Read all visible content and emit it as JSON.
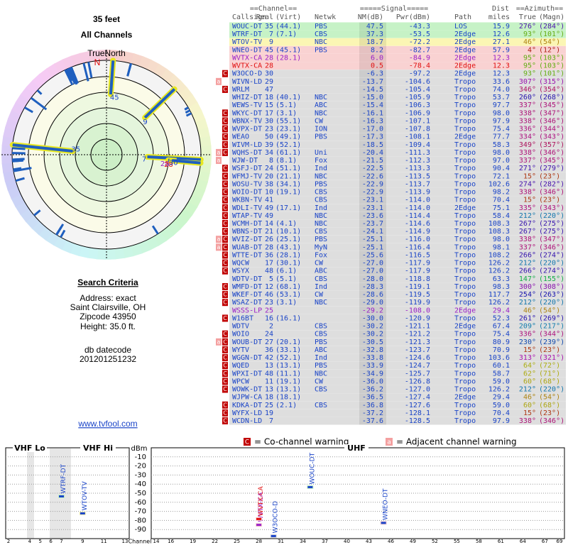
{
  "left": {
    "height": "35 feet",
    "channels": "All Channels",
    "true_north": "TrueNorth",
    "north": "N"
  },
  "search": {
    "title": "Search Criteria",
    "lines": [
      "Address: exact",
      "Saint Clairsville, OH",
      "Zipcode 43950",
      "Height: 35.0 ft."
    ],
    "datecode_label": "db datecode",
    "datecode": "201201251232",
    "link": "www.tvfool.com"
  },
  "table": {
    "groups": [
      "==Channel==",
      "=====Signal=====",
      "Dist",
      "==Azimuth=="
    ],
    "headers": [
      "Callsign",
      "Real",
      "(Virt)",
      "Netwk",
      "NM(dB)",
      "Pwr(dBm)",
      "Path",
      "miles",
      "True",
      "(Magn)"
    ],
    "color": "#1a44c8",
    "bg": "#dedede",
    "rows": [
      {
        "callsign": "WOUC-DT",
        "real": 35,
        "virt": "(44.1)",
        "netwk": "PBS",
        "nm": "47.5",
        "pwr": "-43.3",
        "path": "LOS",
        "dist": "15.9",
        "true": "276°",
        "magn": "(284°)",
        "bg": "#c6f2c6",
        "plotted": true
      },
      {
        "callsign": "WTRF-DT",
        "real": 7,
        "virt": "(7.1)",
        "netwk": "CBS",
        "nm": "37.3",
        "pwr": "-53.5",
        "path": "2Edge",
        "dist": "12.6",
        "true": "93°",
        "magn": "(101°)",
        "bg": "#c6f2c6",
        "plotted": true
      },
      {
        "callsign": "WTOV-TV",
        "real": 9,
        "netwk": "NBC",
        "nm": "18.7",
        "pwr": "-72.2",
        "path": "2Edge",
        "dist": "27.1",
        "true": "46°",
        "magn": "(54°)",
        "bg": "#fbf6b4",
        "plotted": true
      },
      {
        "callsign": "WNEO-DT",
        "real": 45,
        "virt": "(45.1)",
        "netwk": "PBS",
        "nm": "8.2",
        "pwr": "-82.7",
        "path": "2Edge",
        "dist": "57.9",
        "true": "4°",
        "magn": "(12°)",
        "bg": "#f9d2d2",
        "plotted": true
      },
      {
        "callsign": "WVTX-CA",
        "real": 28,
        "virt": "(28.1)",
        "nm": "6.0",
        "pwr": "-84.9",
        "path": "2Edge",
        "dist": "12.3",
        "true": "95°",
        "magn": "(103°)",
        "color": "#9a1fc8",
        "bg": "#f9d2d2",
        "plotted": true
      },
      {
        "callsign": "WVTX-CA",
        "real": 28,
        "nm": "0.5",
        "pwr": "-78.4",
        "path": "2Edge",
        "dist": "12.3",
        "true": "95°",
        "magn": "(103°)",
        "color": "#e01010",
        "bg": "#f9d2d2",
        "plotted": true
      },
      {
        "callsign": "W3OCO-D",
        "real": 30,
        "nm": "-6.3",
        "pwr": "-97.2",
        "path": "2Edge",
        "dist": "12.3",
        "true": "93°",
        "magn": "(101°)",
        "flags": [
          "C"
        ],
        "plotted": true
      },
      {
        "callsign": "WIVN-LD",
        "real": 29,
        "nm": "-13.7",
        "pwr": "-104.6",
        "path": "Tropo",
        "dist": "33.6",
        "true": "307°",
        "magn": "(315°)",
        "flags": [
          "a"
        ]
      },
      {
        "callsign": "WRLM",
        "real": 47,
        "nm": "-14.5",
        "pwr": "-105.4",
        "path": "Tropo",
        "dist": "74.0",
        "true": "346°",
        "magn": "(354°)",
        "flags": [
          "C"
        ]
      },
      {
        "callsign": "WHIZ-DT",
        "real": 18,
        "virt": "(40.1)",
        "netwk": "NBC",
        "nm": "-15.0",
        "pwr": "-105.9",
        "path": "Tropo",
        "dist": "53.7",
        "true": "260°",
        "magn": "(268°)"
      },
      {
        "callsign": "WEWS-TV",
        "real": 15,
        "virt": "(5.1)",
        "netwk": "ABC",
        "nm": "-15.4",
        "pwr": "-106.3",
        "path": "Tropo",
        "dist": "97.7",
        "true": "337°",
        "magn": "(345°)"
      },
      {
        "callsign": "WKYC-DT",
        "real": 17,
        "virt": "(3.1)",
        "netwk": "NBC",
        "nm": "-16.1",
        "pwr": "-106.9",
        "path": "Tropo",
        "dist": "98.0",
        "true": "338°",
        "magn": "(347°)",
        "flags": [
          "C"
        ]
      },
      {
        "callsign": "WBNX-TV",
        "real": 30,
        "virt": "(55.1)",
        "netwk": "CW",
        "nm": "-16.3",
        "pwr": "-107.1",
        "path": "Tropo",
        "dist": "97.9",
        "true": "338°",
        "magn": "(346°)",
        "flags": [
          "C"
        ]
      },
      {
        "callsign": "WVPX-DT",
        "real": 23,
        "virt": "(23.1)",
        "netwk": "ION",
        "nm": "-17.0",
        "pwr": "-107.8",
        "path": "Tropo",
        "dist": "75.4",
        "true": "336°",
        "magn": "(344°)",
        "flags": [
          "C"
        ]
      },
      {
        "callsign": "WEAO",
        "real": 50,
        "virt": "(49.1)",
        "netwk": "PBS",
        "nm": "-17.3",
        "pwr": "-108.1",
        "path": "2Edge",
        "dist": "77.7",
        "true": "334°",
        "magn": "(343°)",
        "flags": [
          "C"
        ]
      },
      {
        "callsign": "WIVM-LD",
        "real": 39,
        "virt": "(52.1)",
        "nm": "-18.5",
        "pwr": "-109.4",
        "path": "Tropo",
        "dist": "58.3",
        "true": "349°",
        "magn": "(357°)",
        "flags": [
          "C"
        ]
      },
      {
        "callsign": "WQHS-DT",
        "real": 34,
        "virt": "(61.1)",
        "netwk": "Uni",
        "nm": "-20.4",
        "pwr": "-111.3",
        "path": "Tropo",
        "dist": "98.0",
        "true": "338°",
        "magn": "(346°)",
        "flags": [
          "C",
          "a"
        ]
      },
      {
        "callsign": "WJW-DT",
        "real": 8,
        "virt": "(8.1)",
        "netwk": "Fox",
        "nm": "-21.5",
        "pwr": "-112.3",
        "path": "Tropo",
        "dist": "97.0",
        "true": "337°",
        "magn": "(345°)",
        "flags": [
          "a"
        ]
      },
      {
        "callsign": "WSFJ-DT",
        "real": 24,
        "virt": "(51.1)",
        "netwk": "Ind",
        "nm": "-22.5",
        "pwr": "-113.3",
        "path": "Tropo",
        "dist": "90.4",
        "true": "271°",
        "magn": "(279°)",
        "flags": [
          "C"
        ]
      },
      {
        "callsign": "WFMJ-TV",
        "real": 20,
        "virt": "(21.1)",
        "netwk": "NBC",
        "nm": "-22.6",
        "pwr": "-113.5",
        "path": "Tropo",
        "dist": "72.1",
        "true": "15°",
        "magn": "(23°)",
        "flags": [
          "C"
        ]
      },
      {
        "callsign": "WOSU-TV",
        "real": 38,
        "virt": "(34.1)",
        "netwk": "PBS",
        "nm": "-22.9",
        "pwr": "-113.7",
        "path": "Tropo",
        "dist": "102.6",
        "true": "274°",
        "magn": "(282°)",
        "flags": [
          "C"
        ]
      },
      {
        "callsign": "WOIO-DT",
        "real": 10,
        "virt": "(19.1)",
        "netwk": "CBS",
        "nm": "-22.9",
        "pwr": "-113.9",
        "path": "Tropo",
        "dist": "98.2",
        "true": "338°",
        "magn": "(346°)",
        "flags": [
          "C"
        ]
      },
      {
        "callsign": "WKBN-TV",
        "real": 41,
        "netwk": "CBS",
        "nm": "-23.1",
        "pwr": "-114.0",
        "path": "Tropo",
        "dist": "70.4",
        "true": "15°",
        "magn": "(23°)",
        "flags": [
          "C"
        ]
      },
      {
        "callsign": "WDLI-TV",
        "real": 49,
        "virt": "(17.1)",
        "netwk": "Ind",
        "nm": "-23.1",
        "pwr": "-114.0",
        "path": "2Edge",
        "dist": "75.1",
        "true": "335°",
        "magn": "(343°)",
        "flags": [
          "C"
        ]
      },
      {
        "callsign": "WTAP-TV",
        "real": 49,
        "netwk": "NBC",
        "nm": "-23.6",
        "pwr": "-114.4",
        "path": "Tropo",
        "dist": "58.4",
        "true": "212°",
        "magn": "(220°)",
        "flags": [
          "C"
        ]
      },
      {
        "callsign": "WCMH-DT",
        "real": 14,
        "virt": "(4.1)",
        "netwk": "NBC",
        "nm": "-23.7",
        "pwr": "-114.6",
        "path": "Tropo",
        "dist": "108.3",
        "true": "267°",
        "magn": "(275°)",
        "flags": [
          "C"
        ]
      },
      {
        "callsign": "WBNS-DT",
        "real": 21,
        "virt": "(10.1)",
        "netwk": "CBS",
        "nm": "-24.1",
        "pwr": "-114.9",
        "path": "Tropo",
        "dist": "108.3",
        "true": "267°",
        "magn": "(275°)",
        "flags": [
          "C"
        ]
      },
      {
        "callsign": "WVIZ-DT",
        "real": 26,
        "virt": "(25.1)",
        "netwk": "PBS",
        "nm": "-25.1",
        "pwr": "-116.0",
        "path": "Tropo",
        "dist": "98.0",
        "true": "338°",
        "magn": "(347°)",
        "flags": [
          "C",
          "a"
        ]
      },
      {
        "callsign": "WUAB-DT",
        "real": 28,
        "virt": "(43.1)",
        "netwk": "MyN",
        "nm": "-25.1",
        "pwr": "-116.4",
        "path": "Tropo",
        "dist": "98.1",
        "true": "337°",
        "magn": "(346°)",
        "flags": [
          "C",
          "a"
        ]
      },
      {
        "callsign": "WTTE-DT",
        "real": 36,
        "virt": "(28.1)",
        "netwk": "Fox",
        "nm": "-25.6",
        "pwr": "-116.5",
        "path": "Tropo",
        "dist": "108.2",
        "true": "266°",
        "magn": "(274°)",
        "flags": [
          "C"
        ]
      },
      {
        "callsign": "WQCW",
        "real": 17,
        "virt": "(30.1)",
        "netwk": "CW",
        "nm": "-27.0",
        "pwr": "-117.9",
        "path": "Tropo",
        "dist": "126.2",
        "true": "212°",
        "magn": "(220°)",
        "flags": [
          "C"
        ]
      },
      {
        "callsign": "WSYX",
        "real": 48,
        "virt": "(6.1)",
        "netwk": "ABC",
        "nm": "-27.0",
        "pwr": "-117.9",
        "path": "Tropo",
        "dist": "126.2",
        "true": "266°",
        "magn": "(274°)",
        "flags": [
          "C"
        ]
      },
      {
        "callsign": "WDTV-DT",
        "real": 5,
        "virt": "(5.1)",
        "netwk": "CBS",
        "nm": "-28.0",
        "pwr": "-118.8",
        "path": "Tropo",
        "dist": "63.3",
        "true": "147°",
        "magn": "(155°)"
      },
      {
        "callsign": "WMFD-DT",
        "real": 12,
        "virt": "(68.1)",
        "netwk": "Ind",
        "nm": "-28.3",
        "pwr": "-119.1",
        "path": "Tropo",
        "dist": "98.3",
        "true": "300°",
        "magn": "(308°)",
        "flags": [
          "C"
        ]
      },
      {
        "callsign": "WKEF-DT",
        "real": 46,
        "virt": "(53.1)",
        "netwk": "CW",
        "nm": "-28.6",
        "pwr": "-119.5",
        "path": "Tropo",
        "dist": "117.7",
        "true": "254°",
        "magn": "(263°)",
        "flags": [
          "C"
        ]
      },
      {
        "callsign": "WSAZ-DT",
        "real": 23,
        "virt": "(3.1)",
        "netwk": "NBC",
        "nm": "-29.0",
        "pwr": "-119.9",
        "path": "Tropo",
        "dist": "126.2",
        "true": "212°",
        "magn": "(220°)",
        "flags": [
          "C"
        ]
      },
      {
        "callsign": "WSSS-LP",
        "real": 25,
        "nm": "-29.2",
        "pwr": "-108.0",
        "path": "2Edge",
        "dist": "29.4",
        "true": "46°",
        "magn": "(54°)",
        "color": "#9a1fc8"
      },
      {
        "callsign": "W16BT",
        "real": 16,
        "virt": "(16.1)",
        "nm": "-30.0",
        "pwr": "-120.9",
        "path": "Tropo",
        "dist": "52.3",
        "true": "261°",
        "magn": "(269°)",
        "flags": [
          "C"
        ]
      },
      {
        "callsign": "WDTV",
        "real": 2,
        "netwk": "CBS",
        "nm": "-30.2",
        "pwr": "-121.1",
        "path": "2Edge",
        "dist": "67.4",
        "true": "209°",
        "magn": "(217°)"
      },
      {
        "callsign": "WOIO",
        "real": 24,
        "netwk": "CBS",
        "nm": "-30.2",
        "pwr": "-121.2",
        "path": "Tropo",
        "dist": "75.4",
        "true": "336°",
        "magn": "(344°)",
        "flags": [
          "C"
        ]
      },
      {
        "callsign": "WOUB-DT",
        "real": 27,
        "virt": "(20.1)",
        "netwk": "PBS",
        "nm": "-30.5",
        "pwr": "-121.3",
        "path": "Tropo",
        "dist": "80.9",
        "true": "230°",
        "magn": "(239°)",
        "flags": [
          "C",
          "a"
        ]
      },
      {
        "callsign": "WYTV",
        "real": 36,
        "virt": "(33.1)",
        "netwk": "ABC",
        "nm": "-32.8",
        "pwr": "-123.7",
        "path": "Tropo",
        "dist": "70.9",
        "true": "15°",
        "magn": "(23°)",
        "flags": [
          "C"
        ]
      },
      {
        "callsign": "WGGN-DT",
        "real": 42,
        "virt": "(52.1)",
        "netwk": "Ind",
        "nm": "-33.8",
        "pwr": "-124.6",
        "path": "Tropo",
        "dist": "103.6",
        "true": "313°",
        "magn": "(321°)",
        "flags": [
          "C"
        ]
      },
      {
        "callsign": "WQED",
        "real": 13,
        "virt": "(13.1)",
        "netwk": "PBS",
        "nm": "-33.9",
        "pwr": "-124.7",
        "path": "Tropo",
        "dist": "60.1",
        "true": "64°",
        "magn": "(72°)",
        "flags": [
          "C"
        ]
      },
      {
        "callsign": "WPXI-DT",
        "real": 48,
        "virt": "(11.1)",
        "netwk": "NBC",
        "nm": "-34.9",
        "pwr": "-125.7",
        "path": "Tropo",
        "dist": "58.7",
        "true": "62°",
        "magn": "(71°)",
        "flags": [
          "C"
        ]
      },
      {
        "callsign": "WPCW",
        "real": 11,
        "virt": "(19.1)",
        "netwk": "CW",
        "nm": "-36.0",
        "pwr": "-126.8",
        "path": "Tropo",
        "dist": "59.0",
        "true": "60°",
        "magn": "(68°)",
        "flags": [
          "C"
        ]
      },
      {
        "callsign": "WOWK-DT",
        "real": 13,
        "virt": "(13.1)",
        "netwk": "CBS",
        "nm": "-36.2",
        "pwr": "-127.0",
        "path": "Tropo",
        "dist": "126.2",
        "true": "212°",
        "magn": "(220°)",
        "flags": [
          "C"
        ]
      },
      {
        "callsign": "WJPW-CA",
        "real": 18,
        "virt": "(18.1)",
        "nm": "-36.5",
        "pwr": "-127.4",
        "path": "2Edge",
        "dist": "29.4",
        "true": "46°",
        "magn": "(54°)"
      },
      {
        "callsign": "KDKA-DT",
        "real": 25,
        "virt": "(2.1)",
        "netwk": "CBS",
        "nm": "-36.8",
        "pwr": "-127.6",
        "path": "Tropo",
        "dist": "59.0",
        "true": "60°",
        "magn": "(68°)",
        "flags": [
          "C"
        ]
      },
      {
        "callsign": "WYFX-LD",
        "real": 19,
        "nm": "-37.2",
        "pwr": "-128.1",
        "path": "Tropo",
        "dist": "70.4",
        "true": "15°",
        "magn": "(23°)",
        "flags": [
          "C"
        ]
      },
      {
        "callsign": "WCDN-LD",
        "real": 7,
        "nm": "-37.6",
        "pwr": "-128.5",
        "path": "Tropo",
        "dist": "97.9",
        "true": "338°",
        "magn": "(346°)",
        "flags": [
          "C"
        ]
      }
    ]
  },
  "legend": {
    "co_flag": "C",
    "co_text": "= Co-channel warning",
    "adj_flag": "a",
    "adj_text": "= Adjacent channel warning"
  },
  "spectrum": {
    "vhf_lo": "VHF Lo",
    "vhf_hi": "VHF Hi",
    "uhf": "UHF",
    "y_label": "dBm",
    "x_label": "Channel",
    "ylim": [
      -100,
      0
    ],
    "yticks": [
      -10,
      -20,
      -30,
      -40,
      -50,
      -60,
      -70,
      -80,
      -90
    ],
    "vhf_ticks": [
      2,
      4,
      5,
      6,
      7,
      9,
      11,
      13
    ],
    "uhf_ticks": [
      14,
      16,
      19,
      22,
      25,
      28,
      31,
      34,
      37,
      40,
      43,
      46,
      49,
      52,
      55,
      58,
      61,
      64,
      67,
      69
    ]
  }
}
